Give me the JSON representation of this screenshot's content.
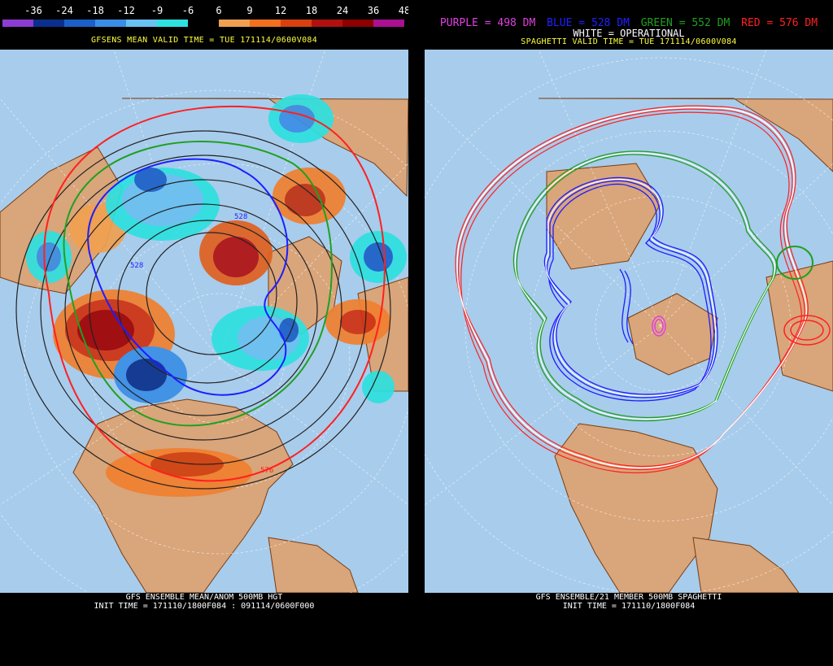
{
  "left": {
    "legend_ticks": [
      "-36",
      "-24",
      "-18",
      "-12",
      "-9",
      "-6",
      "6",
      "9",
      "12",
      "18",
      "24",
      "36",
      "48"
    ],
    "legend_colors": [
      "#8c3cd2",
      "#0a2f8c",
      "#1c5fc8",
      "#3a8ee6",
      "#6ac0f0",
      "#2ee0e0",
      "#000000",
      "#f0a050",
      "#f07020",
      "#d84010",
      "#b01010",
      "#8c0000",
      "#aa1090"
    ],
    "header": "GFSENS MEAN VALID TIME = TUE 171114/0600V084",
    "footer_line1": "GFS ENSEMBLE MEAN/ANOM 500MB HGT",
    "footer_line2": "INIT TIME = 171110/1800F084 : 091114/0600F000",
    "contour_labels": [
      "528",
      "528",
      "576"
    ]
  },
  "right": {
    "legend": [
      {
        "text": "PURPLE = 498 DM",
        "color": "#e040e0"
      },
      {
        "text": "BLUE = 528 DM",
        "color": "#2020ff"
      },
      {
        "text": "GREEN = 552 DM",
        "color": "#20a020"
      },
      {
        "text": "RED = 576 DM",
        "color": "#ff2020"
      }
    ],
    "operational": "WHITE = OPERATIONAL",
    "header": "SPAGHETTI VALID TIME = TUE 171114/0600V084",
    "footer_line1": "GFS ENSEMBLE/21 MEMBER 500MB SPAGHETTI",
    "footer_line2": "INIT TIME = 171110/1800F084"
  },
  "colors": {
    "ocean": "#a8ccec",
    "land": "#d9a57a",
    "border": "#7a3c10",
    "grid": "#ffffff"
  }
}
